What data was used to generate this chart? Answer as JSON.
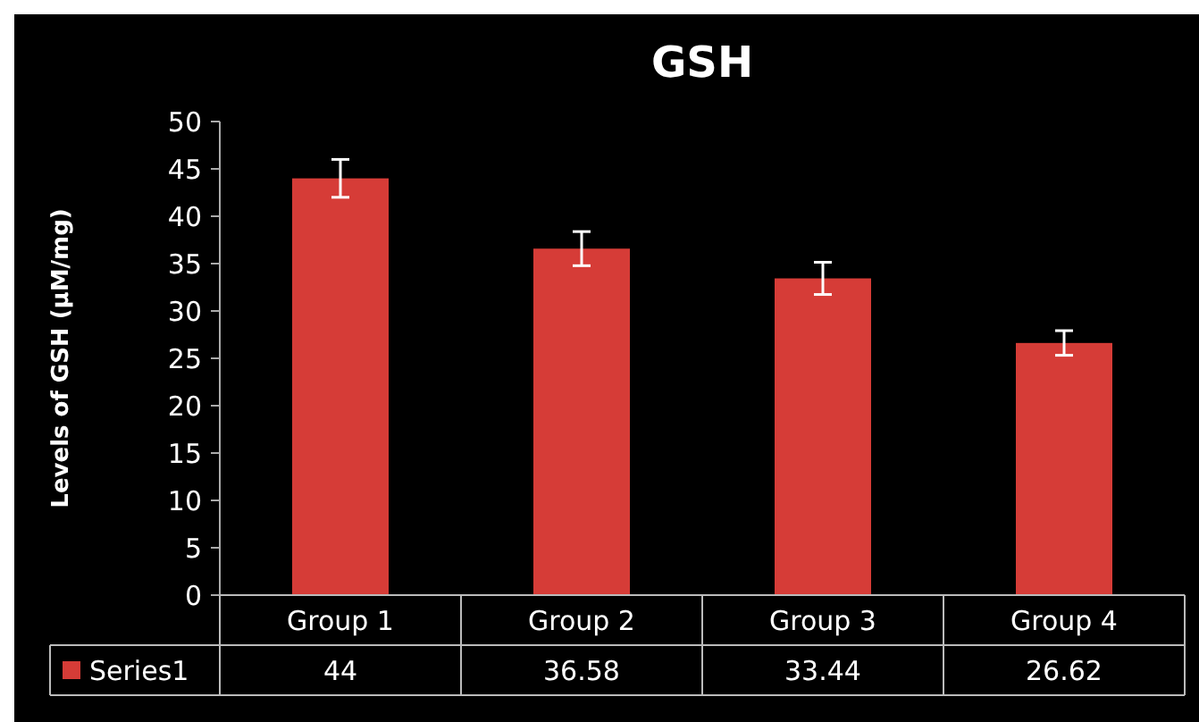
{
  "chart_data": {
    "type": "bar",
    "title": "GSH",
    "ylabel": "Levels of GSH (µM/mg)",
    "categories": [
      "Group 1",
      "Group 2",
      "Group 3",
      "Group 4"
    ],
    "series": [
      {
        "name": "Series1",
        "color": "#d63c37",
        "values": [
          44,
          36.58,
          33.44,
          26.62
        ],
        "errors": [
          2,
          1.8,
          1.7,
          1.3
        ]
      }
    ],
    "ylim": [
      0,
      50
    ],
    "yticks": [
      0,
      5,
      10,
      15,
      20,
      25,
      30,
      35,
      40,
      45,
      50
    ],
    "data_labels": true,
    "legend": "bottom"
  }
}
